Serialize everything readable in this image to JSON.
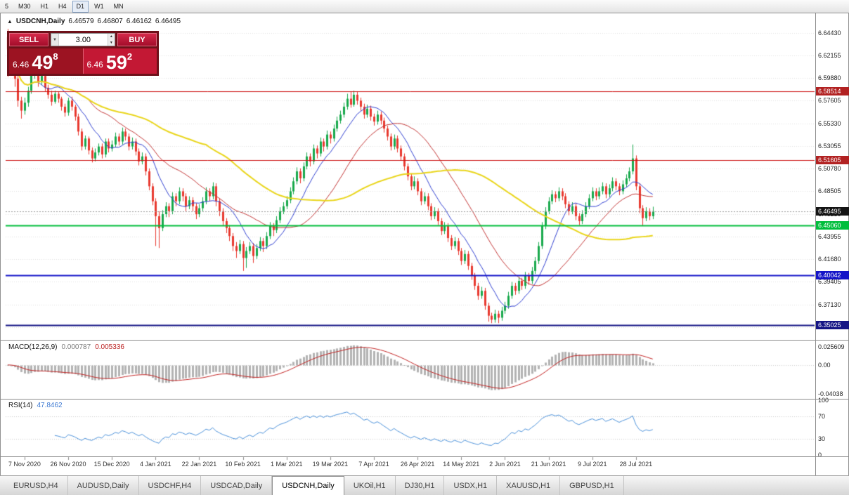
{
  "toolbar": {
    "timeframes": [
      "5",
      "M30",
      "H1",
      "H4",
      "D1",
      "W1",
      "MN"
    ],
    "active_timeframe": "D1"
  },
  "icons": {
    "chart_window": "▲",
    "dropdown": "▼",
    "spin_up": "▲",
    "spin_down": "▼"
  },
  "chart_header": {
    "symbol": "USDCNH,Daily",
    "open": "6.46579",
    "high": "6.46807",
    "low": "6.46162",
    "close": "6.46495"
  },
  "trade_panel": {
    "sell_label": "SELL",
    "buy_label": "BUY",
    "volume": "3.00",
    "bid": {
      "small": "6.46",
      "big": "49",
      "sup": "8"
    },
    "ask": {
      "small": "6.46",
      "big": "59",
      "sup": "2"
    }
  },
  "price_axis": {
    "ticks": [
      "6.64430",
      "6.62155",
      "6.59880",
      "6.57605",
      "6.55330",
      "6.53055",
      "6.50780",
      "6.48505",
      "6.46230",
      "6.43955",
      "6.41680",
      "6.39405",
      "6.37130",
      "6.34855"
    ],
    "line_labels": [
      {
        "value": "6.58514",
        "color": "#b22222",
        "type": "resistance"
      },
      {
        "value": "6.51605",
        "color": "#b22222",
        "type": "resistance"
      },
      {
        "value": "6.46495",
        "color": "#141414",
        "type": "current-price"
      },
      {
        "value": "6.45060",
        "color": "#00be3c",
        "type": "support"
      },
      {
        "value": "6.40042",
        "color": "#1515c8",
        "type": "support"
      },
      {
        "value": "6.35025",
        "color": "#151585",
        "type": "support"
      }
    ]
  },
  "chart_data": {
    "type": "candlestick",
    "symbol": "USDCNH",
    "timeframe": "Daily",
    "ylim": [
      6.34,
      6.656
    ],
    "current_price": 6.46495,
    "up_color": "#18a94c",
    "down_color": "#e8392f",
    "grid_color": "#e0e0e0",
    "x_labels": [
      {
        "index": 5,
        "label": "7 Nov 2020"
      },
      {
        "index": 18,
        "label": "26 Nov 2020"
      },
      {
        "index": 31,
        "label": "15 Dec 2020"
      },
      {
        "index": 44,
        "label": "4 Jan 2021"
      },
      {
        "index": 57,
        "label": "22 Jan 2021"
      },
      {
        "index": 70,
        "label": "10 Feb 2021"
      },
      {
        "index": 83,
        "label": "1 Mar 2021"
      },
      {
        "index": 96,
        "label": "19 Mar 2021"
      },
      {
        "index": 109,
        "label": "7 Apr 2021"
      },
      {
        "index": 122,
        "label": "26 Apr 2021"
      },
      {
        "index": 135,
        "label": "14 May 2021"
      },
      {
        "index": 148,
        "label": "2 Jun 2021"
      },
      {
        "index": 161,
        "label": "21 Jun 2021"
      },
      {
        "index": 174,
        "label": "9 Jul 2021"
      },
      {
        "index": 187,
        "label": "28 Jul 2021"
      }
    ],
    "moving_averages": [
      {
        "period": 10,
        "color": "#2f3fd0",
        "width": 1
      },
      {
        "period": 25,
        "color": "#c23434",
        "width": 1
      },
      {
        "period": 60,
        "color": "#e9d51a",
        "width": 2
      }
    ],
    "hlines": [
      {
        "price": 6.58514,
        "color": "#cc1111",
        "width": 1
      },
      {
        "price": 6.51605,
        "color": "#cc1111",
        "width": 1
      },
      {
        "price": 6.4506,
        "color": "#00be3c",
        "width": 2
      },
      {
        "price": 6.40042,
        "color": "#1515c8",
        "width": 2
      },
      {
        "price": 6.35025,
        "color": "#151585",
        "width": 2
      }
    ],
    "candles": [
      [
        6.64,
        6.648,
        6.6,
        6.628
      ],
      [
        6.628,
        6.632,
        6.608,
        6.615
      ],
      [
        6.615,
        6.618,
        6.59,
        6.598
      ],
      [
        6.598,
        6.601,
        6.57,
        6.576
      ],
      [
        6.576,
        6.58,
        6.558,
        6.566
      ],
      [
        6.566,
        6.579,
        6.562,
        6.574
      ],
      [
        6.574,
        6.59,
        6.57,
        6.586
      ],
      [
        6.586,
        6.605,
        6.583,
        6.602
      ],
      [
        6.602,
        6.613,
        6.598,
        6.608
      ],
      [
        6.608,
        6.61,
        6.59,
        6.595
      ],
      [
        6.595,
        6.604,
        6.592,
        6.601
      ],
      [
        6.601,
        6.604,
        6.585,
        6.589
      ],
      [
        6.589,
        6.592,
        6.578,
        6.582
      ],
      [
        6.582,
        6.586,
        6.571,
        6.575
      ],
      [
        6.575,
        6.586,
        6.573,
        6.583
      ],
      [
        6.583,
        6.585,
        6.574,
        6.578
      ],
      [
        6.578,
        6.58,
        6.566,
        6.57
      ],
      [
        6.57,
        6.573,
        6.56,
        6.564
      ],
      [
        6.564,
        6.579,
        6.561,
        6.576
      ],
      [
        6.576,
        6.58,
        6.566,
        6.57
      ],
      [
        6.57,
        6.572,
        6.556,
        6.56
      ],
      [
        6.56,
        6.563,
        6.541,
        6.545
      ],
      [
        6.545,
        6.548,
        6.526,
        6.53
      ],
      [
        6.53,
        6.541,
        6.527,
        6.538
      ],
      [
        6.538,
        6.54,
        6.522,
        6.526
      ],
      [
        6.526,
        6.529,
        6.514,
        6.518
      ],
      [
        6.518,
        6.528,
        6.515,
        6.524
      ],
      [
        6.524,
        6.533,
        6.521,
        6.53
      ],
      [
        6.53,
        6.533,
        6.518,
        6.522
      ],
      [
        6.522,
        6.538,
        6.519,
        6.535
      ],
      [
        6.535,
        6.538,
        6.524,
        6.528
      ],
      [
        6.528,
        6.536,
        6.525,
        6.532
      ],
      [
        6.532,
        6.544,
        6.529,
        6.54
      ],
      [
        6.54,
        6.543,
        6.531,
        6.535
      ],
      [
        6.535,
        6.549,
        6.532,
        6.545
      ],
      [
        6.545,
        6.548,
        6.536,
        6.54
      ],
      [
        6.54,
        6.543,
        6.526,
        6.53
      ],
      [
        6.53,
        6.539,
        6.527,
        6.535
      ],
      [
        6.535,
        6.538,
        6.521,
        6.525
      ],
      [
        6.525,
        6.528,
        6.511,
        6.515
      ],
      [
        6.515,
        6.524,
        6.512,
        6.52
      ],
      [
        6.52,
        6.523,
        6.501,
        6.505
      ],
      [
        6.505,
        6.508,
        6.486,
        6.49
      ],
      [
        6.49,
        6.493,
        6.471,
        6.475
      ],
      [
        6.475,
        6.478,
        6.43,
        6.46
      ],
      [
        6.46,
        6.465,
        6.428,
        6.448
      ],
      [
        6.448,
        6.466,
        6.445,
        6.462
      ],
      [
        6.462,
        6.474,
        6.459,
        6.47
      ],
      [
        6.47,
        6.473,
        6.459,
        6.465
      ],
      [
        6.465,
        6.484,
        6.462,
        6.48
      ],
      [
        6.48,
        6.483,
        6.47,
        6.475
      ],
      [
        6.475,
        6.489,
        6.472,
        6.485
      ],
      [
        6.485,
        6.488,
        6.475,
        6.48
      ],
      [
        6.48,
        6.483,
        6.465,
        6.47
      ],
      [
        6.47,
        6.48,
        6.467,
        6.476
      ],
      [
        6.476,
        6.479,
        6.465,
        6.47
      ],
      [
        6.47,
        6.473,
        6.457,
        6.462
      ],
      [
        6.462,
        6.472,
        6.459,
        6.468
      ],
      [
        6.468,
        6.479,
        6.465,
        6.475
      ],
      [
        6.475,
        6.489,
        6.472,
        6.485
      ],
      [
        6.485,
        6.488,
        6.475,
        6.48
      ],
      [
        6.48,
        6.494,
        6.477,
        6.49
      ],
      [
        6.49,
        6.493,
        6.47,
        6.475
      ],
      [
        6.475,
        6.478,
        6.46,
        6.465
      ],
      [
        6.465,
        6.468,
        6.45,
        6.455
      ],
      [
        6.455,
        6.458,
        6.443,
        6.448
      ],
      [
        6.448,
        6.451,
        6.435,
        6.44
      ],
      [
        6.44,
        6.443,
        6.425,
        6.43
      ],
      [
        6.43,
        6.434,
        6.418,
        6.425
      ],
      [
        6.425,
        6.436,
        6.422,
        6.432
      ],
      [
        6.432,
        6.435,
        6.405,
        6.418
      ],
      [
        6.418,
        6.429,
        6.408,
        6.425
      ],
      [
        6.425,
        6.434,
        6.422,
        6.43
      ],
      [
        6.43,
        6.433,
        6.413,
        6.42
      ],
      [
        6.42,
        6.432,
        6.417,
        6.428
      ],
      [
        6.428,
        6.439,
        6.425,
        6.435
      ],
      [
        6.435,
        6.438,
        6.424,
        6.43
      ],
      [
        6.43,
        6.444,
        6.427,
        6.44
      ],
      [
        6.44,
        6.454,
        6.437,
        6.45
      ],
      [
        6.45,
        6.453,
        6.44,
        6.446
      ],
      [
        6.446,
        6.46,
        6.443,
        6.456
      ],
      [
        6.456,
        6.469,
        6.453,
        6.465
      ],
      [
        6.465,
        6.474,
        6.462,
        6.47
      ],
      [
        6.47,
        6.48,
        6.467,
        6.476
      ],
      [
        6.476,
        6.489,
        6.473,
        6.485
      ],
      [
        6.485,
        6.499,
        6.482,
        6.495
      ],
      [
        6.495,
        6.509,
        6.492,
        6.505
      ],
      [
        6.505,
        6.508,
        6.493,
        6.498
      ],
      [
        6.498,
        6.514,
        6.495,
        6.51
      ],
      [
        6.51,
        6.524,
        6.507,
        6.52
      ],
      [
        6.52,
        6.523,
        6.51,
        6.515
      ],
      [
        6.515,
        6.532,
        6.512,
        6.528
      ],
      [
        6.528,
        6.531,
        6.518,
        6.523
      ],
      [
        6.523,
        6.539,
        6.52,
        6.535
      ],
      [
        6.535,
        6.538,
        6.525,
        6.53
      ],
      [
        6.53,
        6.546,
        6.527,
        6.542
      ],
      [
        6.542,
        6.545,
        6.533,
        6.538
      ],
      [
        6.538,
        6.552,
        6.535,
        6.548
      ],
      [
        6.548,
        6.56,
        6.545,
        6.556
      ],
      [
        6.556,
        6.566,
        6.553,
        6.562
      ],
      [
        6.562,
        6.574,
        6.559,
        6.57
      ],
      [
        6.57,
        6.583,
        6.567,
        6.578
      ],
      [
        6.578,
        6.585,
        6.569,
        6.572
      ],
      [
        6.572,
        6.586,
        6.57,
        6.582
      ],
      [
        6.582,
        6.585,
        6.572,
        6.576
      ],
      [
        6.576,
        6.579,
        6.566,
        6.57
      ],
      [
        6.57,
        6.573,
        6.558,
        6.562
      ],
      [
        6.562,
        6.572,
        6.559,
        6.568
      ],
      [
        6.568,
        6.571,
        6.556,
        6.56
      ],
      [
        6.56,
        6.563,
        6.551,
        6.555
      ],
      [
        6.555,
        6.566,
        6.552,
        6.562
      ],
      [
        6.562,
        6.565,
        6.552,
        6.556
      ],
      [
        6.556,
        6.559,
        6.544,
        6.548
      ],
      [
        6.548,
        6.551,
        6.536,
        6.54
      ],
      [
        6.54,
        6.543,
        6.526,
        6.53
      ],
      [
        6.53,
        6.542,
        6.527,
        6.538
      ],
      [
        6.538,
        6.541,
        6.524,
        6.528
      ],
      [
        6.528,
        6.531,
        6.516,
        6.52
      ],
      [
        6.52,
        6.523,
        6.506,
        6.51
      ],
      [
        6.51,
        6.513,
        6.496,
        6.5
      ],
      [
        6.5,
        6.503,
        6.486,
        6.49
      ],
      [
        6.49,
        6.5,
        6.487,
        6.495
      ],
      [
        6.495,
        6.498,
        6.481,
        6.485
      ],
      [
        6.485,
        6.488,
        6.471,
        6.475
      ],
      [
        6.475,
        6.484,
        6.472,
        6.48
      ],
      [
        6.48,
        6.483,
        6.466,
        6.47
      ],
      [
        6.47,
        6.473,
        6.456,
        6.46
      ],
      [
        6.46,
        6.469,
        6.457,
        6.465
      ],
      [
        6.465,
        6.468,
        6.451,
        6.455
      ],
      [
        6.455,
        6.458,
        6.441,
        6.445
      ],
      [
        6.445,
        6.454,
        6.442,
        6.45
      ],
      [
        6.45,
        6.453,
        6.434,
        6.438
      ],
      [
        6.438,
        6.441,
        6.426,
        6.43
      ],
      [
        6.43,
        6.439,
        6.427,
        6.435
      ],
      [
        6.435,
        6.438,
        6.421,
        6.425
      ],
      [
        6.425,
        6.428,
        6.411,
        6.415
      ],
      [
        6.415,
        6.426,
        6.412,
        6.422
      ],
      [
        6.422,
        6.425,
        6.406,
        6.41
      ],
      [
        6.41,
        6.413,
        6.396,
        6.4
      ],
      [
        6.4,
        6.403,
        6.386,
        6.39
      ],
      [
        6.39,
        6.393,
        6.376,
        6.38
      ],
      [
        6.38,
        6.389,
        6.377,
        6.385
      ],
      [
        6.385,
        6.388,
        6.366,
        6.37
      ],
      [
        6.37,
        6.373,
        6.354,
        6.36
      ],
      [
        6.36,
        6.363,
        6.3525,
        6.356
      ],
      [
        6.356,
        6.366,
        6.353,
        6.362
      ],
      [
        6.362,
        6.365,
        6.3525,
        6.358
      ],
      [
        6.358,
        6.369,
        6.355,
        6.365
      ],
      [
        6.365,
        6.374,
        6.362,
        6.37
      ],
      [
        6.37,
        6.384,
        6.367,
        6.38
      ],
      [
        6.38,
        6.394,
        6.377,
        6.39
      ],
      [
        6.39,
        6.393,
        6.381,
        6.385
      ],
      [
        6.385,
        6.399,
        6.382,
        6.395
      ],
      [
        6.395,
        6.398,
        6.386,
        6.39
      ],
      [
        6.39,
        6.404,
        6.387,
        6.4
      ],
      [
        6.4,
        6.403,
        6.391,
        6.395
      ],
      [
        6.395,
        6.409,
        6.392,
        6.405
      ],
      [
        6.405,
        6.419,
        6.402,
        6.415
      ],
      [
        6.415,
        6.434,
        6.412,
        6.43
      ],
      [
        6.43,
        6.454,
        6.427,
        6.45
      ],
      [
        6.45,
        6.469,
        6.447,
        6.465
      ],
      [
        6.465,
        6.479,
        6.462,
        6.475
      ],
      [
        6.475,
        6.486,
        6.472,
        6.482
      ],
      [
        6.482,
        6.485,
        6.474,
        6.478
      ],
      [
        6.478,
        6.489,
        6.475,
        6.485
      ],
      [
        6.485,
        6.488,
        6.476,
        6.48
      ],
      [
        6.48,
        6.483,
        6.468,
        6.472
      ],
      [
        6.472,
        6.475,
        6.461,
        6.465
      ],
      [
        6.465,
        6.474,
        6.462,
        6.47
      ],
      [
        6.47,
        6.473,
        6.456,
        6.46
      ],
      [
        6.46,
        6.463,
        6.451,
        6.455
      ],
      [
        6.455,
        6.466,
        6.452,
        6.462
      ],
      [
        6.462,
        6.474,
        6.459,
        6.47
      ],
      [
        6.47,
        6.482,
        6.467,
        6.478
      ],
      [
        6.478,
        6.489,
        6.475,
        6.485
      ],
      [
        6.485,
        6.488,
        6.476,
        6.48
      ],
      [
        6.48,
        6.489,
        6.477,
        6.485
      ],
      [
        6.485,
        6.494,
        6.482,
        6.49
      ],
      [
        6.49,
        6.493,
        6.478,
        6.482
      ],
      [
        6.482,
        6.492,
        6.479,
        6.488
      ],
      [
        6.488,
        6.499,
        6.485,
        6.495
      ],
      [
        6.495,
        6.498,
        6.486,
        6.49
      ],
      [
        6.49,
        6.493,
        6.481,
        6.485
      ],
      [
        6.485,
        6.496,
        6.482,
        6.492
      ],
      [
        6.492,
        6.502,
        6.489,
        6.498
      ],
      [
        6.498,
        6.509,
        6.495,
        6.505
      ],
      [
        6.505,
        6.532,
        6.502,
        6.518
      ],
      [
        6.518,
        6.521,
        6.486,
        6.49
      ],
      [
        6.49,
        6.493,
        6.463,
        6.468
      ],
      [
        6.468,
        6.471,
        6.45,
        6.458
      ],
      [
        6.458,
        6.469,
        6.455,
        6.465
      ],
      [
        6.465,
        6.468,
        6.456,
        6.46
      ],
      [
        6.46,
        6.4695,
        6.457,
        6.465
      ]
    ]
  },
  "macd_panel": {
    "name": "MACD(12,26,9)",
    "value_main": "0.000787",
    "value_signal": "0.005336",
    "fast": 12,
    "slow": 26,
    "signal": 9,
    "hist_color": "#b3b3b3",
    "signal_color": "#c22222",
    "axis_labels": [
      {
        "label": "0.025609",
        "value": 0.025609
      },
      {
        "label": "0.00",
        "value": 0
      },
      {
        "label": "-0.04038",
        "value": -0.04038
      }
    ]
  },
  "rsi_panel": {
    "name": "RSI(14)",
    "value": "47.8462",
    "period": 14,
    "line_color": "#4a90d9",
    "axis_labels": [
      {
        "label": "100",
        "value": 100
      },
      {
        "label": "70",
        "value": 70
      },
      {
        "label": "30",
        "value": 30
      },
      {
        "label": "0",
        "value": 0
      }
    ],
    "level_lines": [
      70,
      30
    ]
  },
  "tabs": {
    "items": [
      "EURUSD,H4",
      "AUDUSD,Daily",
      "USDCHF,H4",
      "USDCAD,Daily",
      "USDCNH,Daily",
      "UKOil,H1",
      "DJ30,H1",
      "USDX,H1",
      "XAUUSD,H1",
      "GBPUSD,H1"
    ],
    "active": "USDCNH,Daily"
  }
}
